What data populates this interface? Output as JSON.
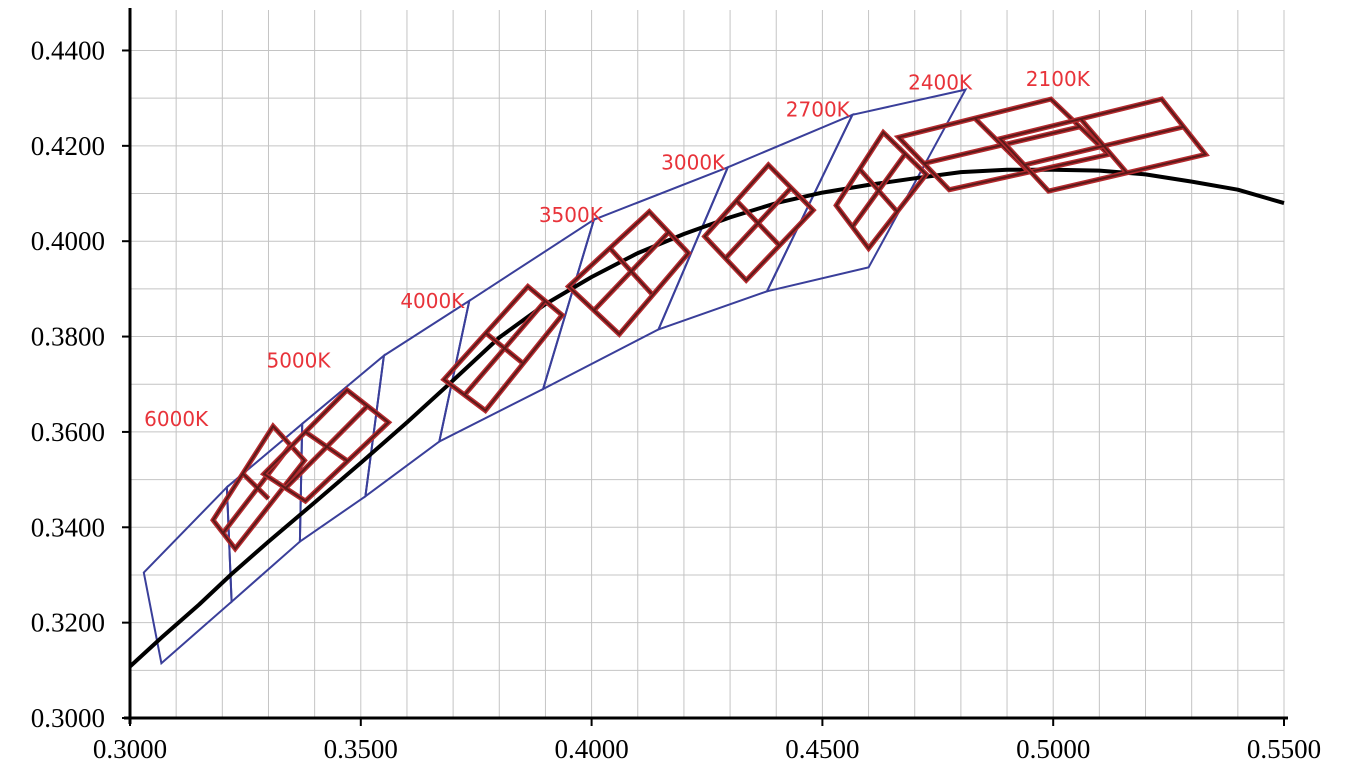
{
  "chart_data": {
    "type": "line",
    "title": "",
    "xlabel": "",
    "ylabel": "",
    "xlim": [
      0.3,
      0.55
    ],
    "ylim": [
      0.3,
      0.445
    ],
    "grid": true,
    "x_ticks": [
      0.3,
      0.35,
      0.4,
      0.45,
      0.5,
      0.55
    ],
    "x_tick_labels": [
      "0.3000",
      "0.3500",
      "0.4000",
      "0.4500",
      "0.5000",
      "0.5500"
    ],
    "y_ticks": [
      0.3,
      0.32,
      0.34,
      0.36,
      0.38,
      0.4,
      0.42,
      0.44
    ],
    "y_tick_labels": [
      "0.3000",
      "0.3200",
      "0.3400",
      "0.3600",
      "0.3800",
      "0.4000",
      "0.4200",
      "0.4400"
    ],
    "minor_x_step": 0.01,
    "minor_y_step": 0.01,
    "colors": {
      "locus": "#000000",
      "blue_quad": "#3a3f9a",
      "red_quad_outer": "#b52a2e",
      "red_quad_inner": "#5a1a1a",
      "label": "#e8333a",
      "grid": "#c4c4c4"
    },
    "locus": {
      "x": [
        0.3,
        0.307,
        0.315,
        0.322,
        0.33,
        0.34,
        0.35,
        0.36,
        0.37,
        0.38,
        0.39,
        0.4,
        0.41,
        0.42,
        0.43,
        0.44,
        0.45,
        0.46,
        0.47,
        0.48,
        0.49,
        0.5,
        0.51,
        0.52,
        0.53,
        0.54,
        0.55
      ],
      "y": [
        0.3108,
        0.317,
        0.3238,
        0.3302,
        0.337,
        0.3452,
        0.3535,
        0.362,
        0.3708,
        0.3798,
        0.3868,
        0.3925,
        0.3975,
        0.4015,
        0.405,
        0.408,
        0.4102,
        0.4118,
        0.4132,
        0.4145,
        0.415,
        0.415,
        0.4148,
        0.414,
        0.4125,
        0.4108,
        0.408
      ]
    },
    "blue_quadrangles": [
      {
        "cct": "6000K",
        "points": [
          [
            0.303,
            0.3305
          ],
          [
            0.321,
            0.3484
          ],
          [
            0.322,
            0.3244
          ],
          [
            0.3068,
            0.3115
          ]
        ]
      },
      {
        "cct": "5000K",
        "points": [
          [
            0.321,
            0.3484
          ],
          [
            0.3373,
            0.3617
          ],
          [
            0.3368,
            0.337
          ],
          [
            0.322,
            0.3244
          ]
        ]
      },
      {
        "cct": "4000K",
        "points": [
          [
            0.3373,
            0.3617
          ],
          [
            0.355,
            0.376
          ],
          [
            0.351,
            0.3465
          ],
          [
            0.3368,
            0.337
          ]
        ]
      },
      {
        "cct": "3500K",
        "points": [
          [
            0.355,
            0.376
          ],
          [
            0.3735,
            0.3875
          ],
          [
            0.367,
            0.358
          ],
          [
            0.351,
            0.3465
          ]
        ]
      },
      {
        "cct": "3000K",
        "points": [
          [
            0.3735,
            0.3875
          ],
          [
            0.4005,
            0.4045
          ],
          [
            0.3895,
            0.369
          ],
          [
            0.367,
            0.358
          ]
        ]
      },
      {
        "cct": "2700K",
        "points": [
          [
            0.4005,
            0.4045
          ],
          [
            0.4295,
            0.4155
          ],
          [
            0.4145,
            0.3815
          ],
          [
            0.3895,
            0.369
          ]
        ]
      },
      {
        "cct": "2400K",
        "points": [
          [
            0.4295,
            0.4155
          ],
          [
            0.4565,
            0.4265
          ],
          [
            0.438,
            0.3895
          ],
          [
            0.4145,
            0.3815
          ]
        ]
      },
      {
        "cct": "2100K",
        "points": [
          [
            0.4565,
            0.4265
          ],
          [
            0.481,
            0.4318
          ],
          [
            0.46,
            0.3945
          ],
          [
            0.438,
            0.3895
          ]
        ]
      }
    ],
    "red_quadrangles": [
      {
        "cct": "6000K",
        "points": [
          [
            0.318,
            0.3415
          ],
          [
            0.331,
            0.3612
          ],
          [
            0.3378,
            0.354
          ],
          [
            0.3228,
            0.3355
          ]
        ],
        "cross": [
          [
            [
              0.3245,
              0.3512
            ],
            [
              0.33,
              0.346
            ]
          ],
          [
            [
              0.32,
              0.3386
            ],
            [
              0.335,
              0.3575
            ]
          ]
        ]
      },
      {
        "cct": "5000K",
        "points": [
          [
            0.329,
            0.3512
          ],
          [
            0.347,
            0.3688
          ],
          [
            0.356,
            0.362
          ],
          [
            0.338,
            0.3455
          ]
        ],
        "cross": [
          [
            [
              0.338,
              0.36
            ],
            [
              0.347,
              0.354
            ]
          ],
          [
            [
              0.3335,
              0.348
            ],
            [
              0.3515,
              0.3655
            ]
          ]
        ]
      },
      {
        "cct": "4000K",
        "points": [
          [
            0.368,
            0.371
          ],
          [
            0.3862,
            0.3905
          ],
          [
            0.3936,
            0.3845
          ],
          [
            0.377,
            0.3645
          ]
        ],
        "cross": [
          [
            [
              0.377,
              0.3808
            ],
            [
              0.385,
              0.3745
            ]
          ],
          [
            [
              0.3725,
              0.3678
            ],
            [
              0.39,
              0.3875
            ]
          ]
        ]
      },
      {
        "cct": "3500K",
        "points": [
          [
            0.395,
            0.3905
          ],
          [
            0.4125,
            0.4062
          ],
          [
            0.421,
            0.3975
          ],
          [
            0.406,
            0.3805
          ]
        ],
        "cross": [
          [
            [
              0.404,
              0.3985
            ],
            [
              0.413,
              0.389
            ]
          ],
          [
            [
              0.4005,
              0.3855
            ],
            [
              0.4168,
              0.402
            ]
          ]
        ]
      },
      {
        "cct": "3000K",
        "points": [
          [
            0.4245,
            0.401
          ],
          [
            0.4383,
            0.416
          ],
          [
            0.448,
            0.4065
          ],
          [
            0.4335,
            0.3918
          ]
        ],
        "cross": [
          [
            [
              0.4314,
              0.4085
            ],
            [
              0.4408,
              0.399
            ]
          ],
          [
            [
              0.429,
              0.3964
            ],
            [
              0.4432,
              0.4112
            ]
          ]
        ]
      },
      {
        "cct": "2700K",
        "points": [
          [
            0.453,
            0.4075
          ],
          [
            0.4632,
            0.4228
          ],
          [
            0.4725,
            0.414
          ],
          [
            0.46,
            0.3985
          ]
        ],
        "cross": [
          [
            [
              0.458,
              0.4152
            ],
            [
              0.4662,
              0.4062
            ]
          ],
          [
            [
              0.4565,
              0.403
            ],
            [
              0.468,
              0.4184
            ]
          ]
        ]
      },
      {
        "cct": "2400K",
        "points": [
          [
            0.4665,
            0.4218
          ],
          [
            0.4995,
            0.4298
          ],
          [
            0.512,
            0.4182
          ],
          [
            0.4775,
            0.4108
          ]
        ],
        "cross": [
          [
            [
              0.483,
              0.4258
            ],
            [
              0.4948,
              0.4145
            ]
          ],
          [
            [
              0.472,
              0.4163
            ],
            [
              0.5058,
              0.424
            ]
          ]
        ]
      },
      {
        "cct": "2100K",
        "points": [
          [
            0.4885,
            0.4215
          ],
          [
            0.5235,
            0.4298
          ],
          [
            0.533,
            0.4182
          ],
          [
            0.499,
            0.4105
          ]
        ],
        "cross": [
          [
            [
              0.506,
              0.4256
            ],
            [
              0.516,
              0.4143
            ]
          ],
          [
            [
              0.4938,
              0.416
            ],
            [
              0.5283,
              0.424
            ]
          ]
        ]
      }
    ],
    "labels": [
      {
        "text": "6000K",
        "x": 0.31,
        "y": 0.3612
      },
      {
        "text": "5000K",
        "x": 0.3365,
        "y": 0.3735
      },
      {
        "text": "4000K",
        "x": 0.3655,
        "y": 0.386
      },
      {
        "text": "3500K",
        "x": 0.3955,
        "y": 0.404
      },
      {
        "text": "3000K",
        "x": 0.422,
        "y": 0.415
      },
      {
        "text": "2700K",
        "x": 0.449,
        "y": 0.4262
      },
      {
        "text": "2400K",
        "x": 0.4755,
        "y": 0.4318
      },
      {
        "text": "2100K",
        "x": 0.501,
        "y": 0.4325
      }
    ]
  }
}
